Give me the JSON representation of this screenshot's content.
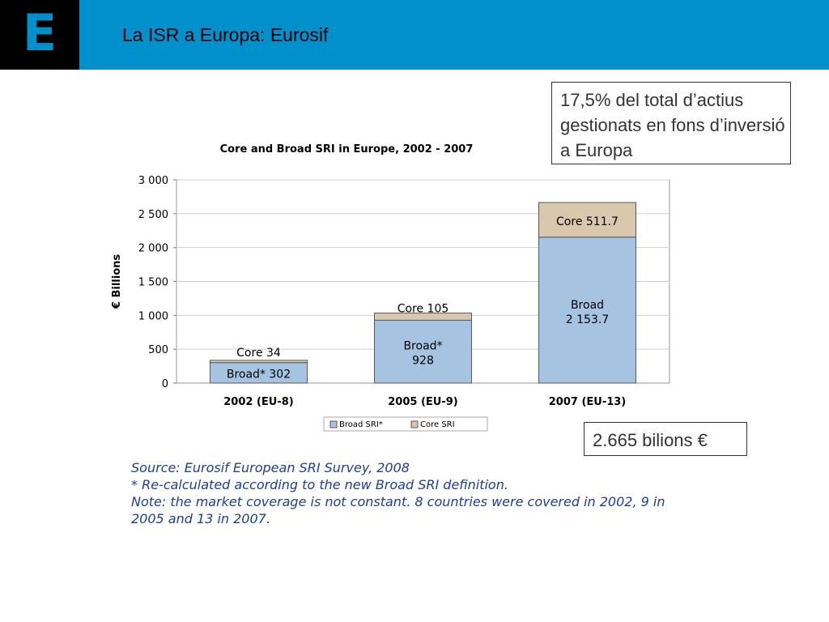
{
  "header": {
    "logo_letter": "E",
    "title": "La ISR a Europa: Eurosif"
  },
  "callouts": {
    "share_text": "17,5% del total d’actius gestionats en fons d’inversió a Europa",
    "total_text": "2.665 bilions €"
  },
  "chart_data": {
    "type": "bar",
    "stacked": true,
    "title": "Core and Broad SRI in Europe, 2002 - 2007",
    "xlabel": "",
    "ylabel": "€ Billions",
    "ylim": [
      0,
      3000
    ],
    "yticks": [
      0,
      500,
      1000,
      1500,
      2000,
      2500,
      3000
    ],
    "ytick_labels": [
      "0",
      "500",
      "1 000",
      "1 500",
      "2 000",
      "2 500",
      "3 000"
    ],
    "categories": [
      "2002 (EU-8)",
      "2005 (EU-9)",
      "2007 (EU-13)"
    ],
    "series": [
      {
        "name": "Broad SRI*",
        "values": [
          302,
          928,
          2153.7
        ],
        "labels": [
          "Broad* 302",
          "Broad*\n928",
          "Broad\n2 153.7"
        ],
        "color": "#a6c4e1"
      },
      {
        "name": "Core SRI",
        "values": [
          34,
          105,
          511.7
        ],
        "labels": [
          "Core 34",
          "Core 105",
          "Core 511.7"
        ],
        "color": "#d9c7ae"
      }
    ],
    "grid": true,
    "legend": "bottom"
  },
  "notes": [
    "Source: Eurosif European SRI Survey, 2008",
    "* Re-calculated according to the new Broad SRI definition.",
    "Note: the market coverage is not constant. 8 countries were covered in 2002, 9 in",
    "2005 and 13 in 2007."
  ]
}
